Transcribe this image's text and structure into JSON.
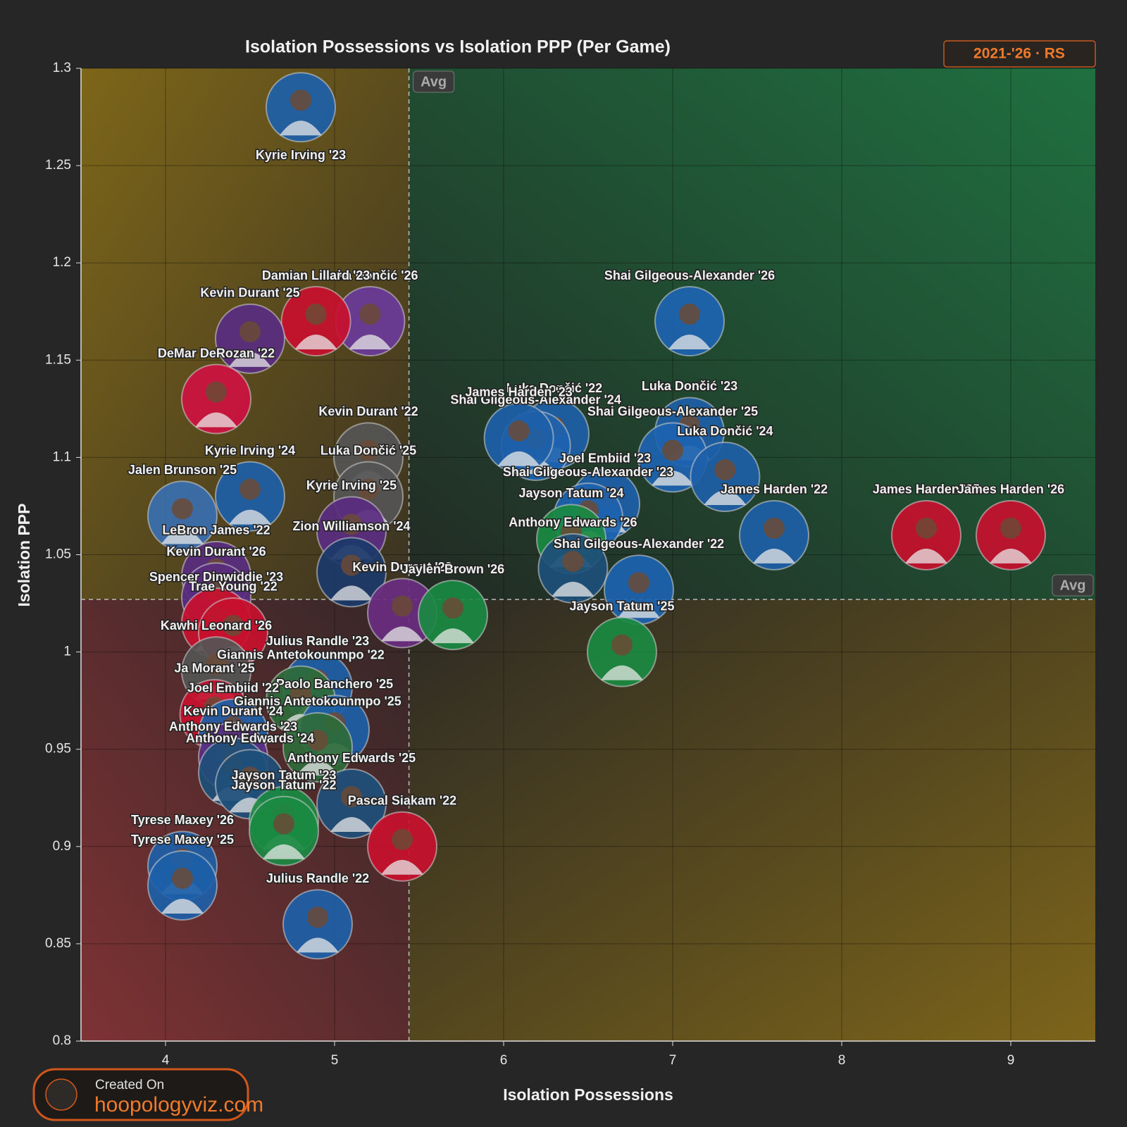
{
  "chart_data": {
    "type": "scatter",
    "title": "Isolation Possessions vs Isolation PPP (Per Game)",
    "badge": "2021-'26 · RS",
    "x_label": "Isolation Possessions",
    "y_label": "Isolation PPP",
    "xlim": [
      3.5,
      9.5
    ],
    "xticks": [
      4,
      5,
      6,
      7,
      8,
      9
    ],
    "ylim": [
      0.8,
      1.3
    ],
    "yticks": [
      0.8,
      0.85,
      0.9,
      0.95,
      1,
      1.05,
      1.1,
      1.15,
      1.2,
      1.25,
      1.3
    ],
    "grid": true,
    "avg_label": "Avg",
    "avg_x": 5.44,
    "avg_y": 1.027,
    "footer": {
      "line1": "Created On",
      "line2": "hoopologyviz.com"
    },
    "points": [
      {
        "label": "Kyrie Irving '23",
        "x": 4.8,
        "y": 1.28,
        "color": "#1d5fa8"
      },
      {
        "label": "Luka Dončić '26",
        "x": 5.21,
        "y": 1.17,
        "color": "#6a3a9a"
      },
      {
        "label": "Damian Lillard '23",
        "x": 4.89,
        "y": 1.17,
        "color": "#c8102e"
      },
      {
        "label": "Kevin Durant '25",
        "x": 4.5,
        "y": 1.161,
        "color": "#5a2d81"
      },
      {
        "label": "DeMar DeRozan '22",
        "x": 4.3,
        "y": 1.13,
        "color": "#ce1141"
      },
      {
        "label": "Shai Gilgeous-Alexander '26",
        "x": 7.1,
        "y": 1.17,
        "color": "#1d63b0"
      },
      {
        "label": "Luka Dončić '22",
        "x": 6.3,
        "y": 1.112,
        "color": "#1d5fa8"
      },
      {
        "label": "Shai Gilgeous-Alexander '24",
        "x": 6.19,
        "y": 1.106,
        "color": "#1d63b0"
      },
      {
        "label": "James Harden '23",
        "x": 6.09,
        "y": 1.11,
        "color": "#1d5fa8"
      },
      {
        "label": "Luka Dončić '23",
        "x": 7.1,
        "y": 1.113,
        "color": "#1d5fa8"
      },
      {
        "label": "Shai Gilgeous-Alexander '25",
        "x": 7.0,
        "y": 1.1,
        "color": "#1d63b0"
      },
      {
        "label": "Luka Dončić '24",
        "x": 7.31,
        "y": 1.09,
        "color": "#1d5fa8"
      },
      {
        "label": "Joel Embiid '23",
        "x": 6.6,
        "y": 1.076,
        "color": "#1d5fa8"
      },
      {
        "label": "Shai Gilgeous-Alexander '23",
        "x": 6.5,
        "y": 1.069,
        "color": "#1d63b0"
      },
      {
        "label": "Jayson Tatum '24",
        "x": 6.4,
        "y": 1.058,
        "color": "#1a8a42"
      },
      {
        "label": "Anthony Edwards '26",
        "x": 6.41,
        "y": 1.043,
        "color": "#1e4f7a"
      },
      {
        "label": "James Harden '22",
        "x": 7.6,
        "y": 1.06,
        "color": "#1d5fa8"
      },
      {
        "label": "James Harden '25",
        "x": 8.5,
        "y": 1.06,
        "color": "#c8102e"
      },
      {
        "label": "James Harden '26",
        "x": 9.0,
        "y": 1.06,
        "color": "#c8102e"
      },
      {
        "label": "Shai Gilgeous-Alexander '22",
        "x": 6.8,
        "y": 1.032,
        "color": "#1d63b0"
      },
      {
        "label": "Jayson Tatum '25",
        "x": 6.7,
        "y": 1.0,
        "color": "#1a8a42"
      },
      {
        "label": "Kevin Durant '22",
        "x": 5.2,
        "y": 1.1,
        "color": "#555555"
      },
      {
        "label": "Kyrie Irving '24",
        "x": 4.5,
        "y": 1.08,
        "color": "#1d5fa8"
      },
      {
        "label": "Jalen Brunson '25",
        "x": 4.1,
        "y": 1.07,
        "color": "#3a6fb0"
      },
      {
        "label": "LeBron James '22",
        "x": 4.3,
        "y": 1.039,
        "color": "#5a2d81"
      },
      {
        "label": "Luka Dončić '25",
        "x": 5.2,
        "y": 1.08,
        "color": "#555555"
      },
      {
        "label": "Kyrie Irving '25",
        "x": 5.1,
        "y": 1.062,
        "color": "#5a2d81"
      },
      {
        "label": "Zion Williamson '24",
        "x": 5.1,
        "y": 1.041,
        "color": "#1b3a6a"
      },
      {
        "label": "Kevin Durant '23",
        "x": 5.4,
        "y": 1.02,
        "color": "#6a2d81"
      },
      {
        "label": "Kevin Durant '26",
        "x": 4.3,
        "y": 1.028,
        "color": "#5a2d81"
      },
      {
        "label": "Jaylen Brown '26",
        "x": 5.7,
        "y": 1.019,
        "color": "#1a8a42"
      },
      {
        "label": "Spencer Dinwiddie '23",
        "x": 4.3,
        "y": 1.015,
        "color": "#c8102e"
      },
      {
        "label": "Trae Young '22",
        "x": 4.4,
        "y": 1.01,
        "color": "#c8102e"
      },
      {
        "label": "Kawhi Leonard '26",
        "x": 4.3,
        "y": 0.99,
        "color": "#555555"
      },
      {
        "label": "Julius Randle '23",
        "x": 4.9,
        "y": 0.982,
        "color": "#1d5fa8"
      },
      {
        "label": "Giannis Antetokounmpo '22",
        "x": 4.8,
        "y": 0.975,
        "color": "#2f6b3a"
      },
      {
        "label": "Ja Morant '25",
        "x": 4.29,
        "y": 0.968,
        "color": "#c8102e"
      },
      {
        "label": "Paolo Banchero '25",
        "x": 5.0,
        "y": 0.96,
        "color": "#1d5fa8"
      },
      {
        "label": "Joel Embiid '22",
        "x": 4.4,
        "y": 0.958,
        "color": "#1d5fa8"
      },
      {
        "label": "Giannis Antetokounmpo '25",
        "x": 4.9,
        "y": 0.951,
        "color": "#2f6b3a"
      },
      {
        "label": "Kevin Durant '24",
        "x": 4.4,
        "y": 0.946,
        "color": "#5a2d81"
      },
      {
        "label": "Anthony Edwards '23",
        "x": 4.4,
        "y": 0.938,
        "color": "#1e4f7a"
      },
      {
        "label": "Anthony Edwards '24",
        "x": 4.5,
        "y": 0.932,
        "color": "#1e4f7a"
      },
      {
        "label": "Anthony Edwards '25",
        "x": 5.1,
        "y": 0.922,
        "color": "#1e4f7a"
      },
      {
        "label": "Jayson Tatum '23",
        "x": 4.7,
        "y": 0.913,
        "color": "#1a8a42"
      },
      {
        "label": "Jayson Tatum '22",
        "x": 4.7,
        "y": 0.908,
        "color": "#1a8a42"
      },
      {
        "label": "Pascal Siakam '22",
        "x": 5.4,
        "y": 0.9,
        "color": "#c8102e"
      },
      {
        "label": "Tyrese Maxey '26",
        "x": 4.1,
        "y": 0.89,
        "color": "#1d5fa8"
      },
      {
        "label": "Tyrese Maxey '25",
        "x": 4.1,
        "y": 0.88,
        "color": "#1d5fa8"
      },
      {
        "label": "Julius Randle '22",
        "x": 4.9,
        "y": 0.86,
        "color": "#1d5fa8"
      }
    ]
  }
}
